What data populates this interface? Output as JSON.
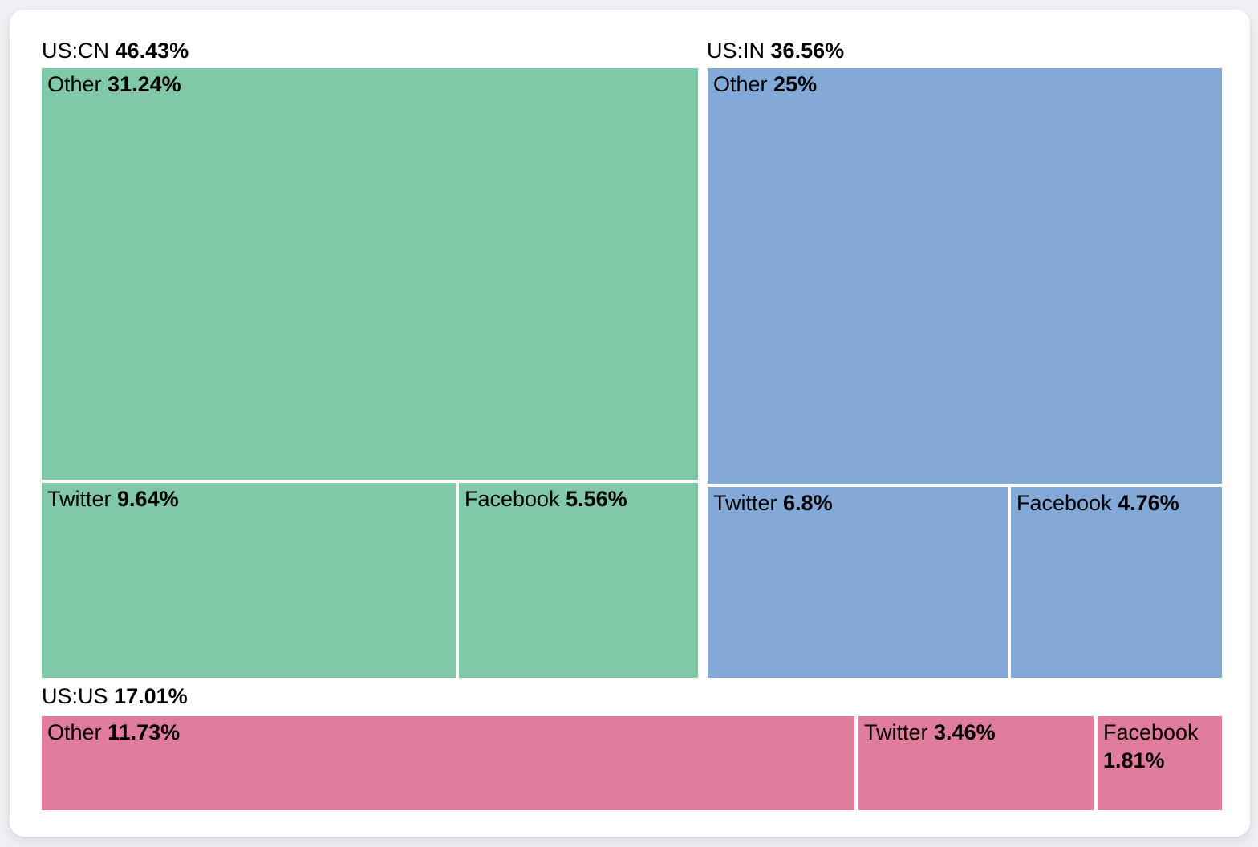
{
  "page": {
    "background": "#eff1f4",
    "card_background": "#ffffff",
    "text_color": "#000000"
  },
  "chart_data": {
    "type": "treemap",
    "unit": "%",
    "grid": false,
    "legend": false,
    "groups": [
      {
        "name": "US:CN",
        "value": 46.43,
        "value_label": "46.43%",
        "color": "#80c8a8",
        "children": [
          {
            "name": "Other",
            "value": 31.24,
            "value_label": "31.24%"
          },
          {
            "name": "Twitter",
            "value": 9.64,
            "value_label": "9.64%"
          },
          {
            "name": "Facebook",
            "value": 5.56,
            "value_label": "5.56%"
          }
        ]
      },
      {
        "name": "US:IN",
        "value": 36.56,
        "value_label": "36.56%",
        "color": "#82a9d8",
        "children": [
          {
            "name": "Other",
            "value": 25,
            "value_label": "25%"
          },
          {
            "name": "Twitter",
            "value": 6.8,
            "value_label": "6.8%"
          },
          {
            "name": "Facebook",
            "value": 4.76,
            "value_label": "4.76%"
          }
        ]
      },
      {
        "name": "US:US",
        "value": 17.01,
        "value_label": "17.01%",
        "color": "#e07d9d",
        "children": [
          {
            "name": "Other",
            "value": 11.73,
            "value_label": "11.73%"
          },
          {
            "name": "Twitter",
            "value": 3.46,
            "value_label": "3.46%"
          },
          {
            "name": "Facebook",
            "value": 1.81,
            "value_label": "1.81%"
          }
        ]
      }
    ]
  }
}
